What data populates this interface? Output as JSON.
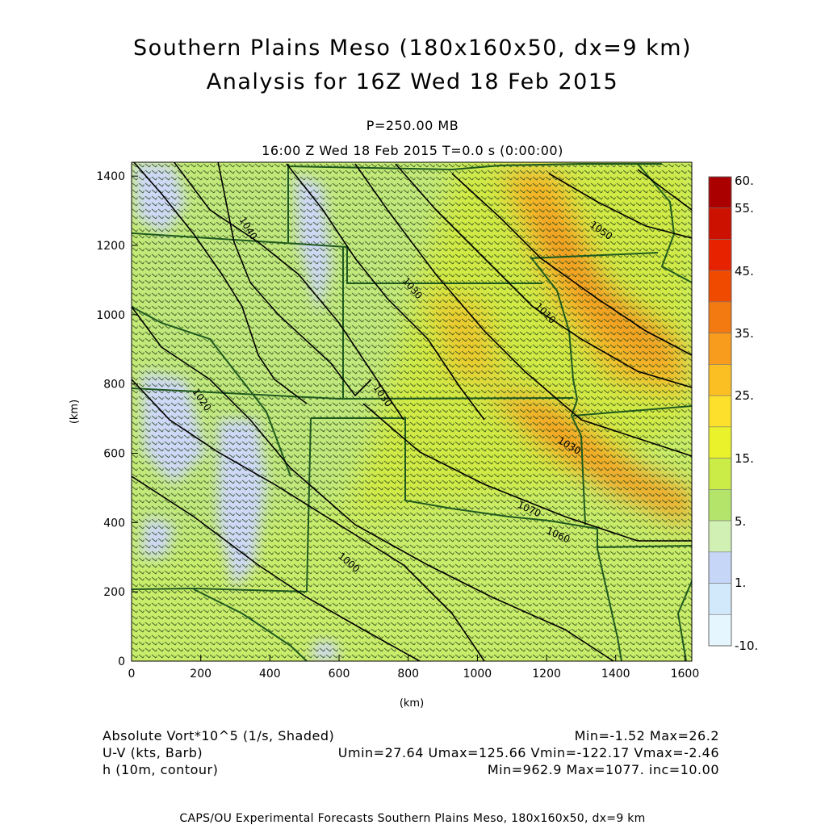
{
  "title": {
    "line1": "Southern Plains Meso (180x160x50, dx=9 km)",
    "line2": "Analysis for 16Z Wed 18 Feb 2015"
  },
  "subtitle": {
    "pressure": "P=250.00 MB",
    "time": "16:00 Z Wed 18 Feb 2015    T=0.0 s (0:00:00)"
  },
  "axes": {
    "x_label": "(km)",
    "y_label": "(km)",
    "x_ticks": [
      "0",
      "200",
      "400",
      "600",
      "800",
      "1000",
      "1200",
      "1400",
      "1600"
    ],
    "y_ticks": [
      "0",
      "200",
      "400",
      "600",
      "800",
      "1000",
      "1200",
      "1400"
    ],
    "x_range": [
      0,
      1620
    ],
    "y_range": [
      0,
      1440
    ]
  },
  "colorbar": {
    "labels": [
      "60.",
      "55.",
      "45.",
      "35.",
      "25.",
      "15.",
      "5.",
      "1.",
      "-10."
    ],
    "colors": [
      "#ab0000",
      "#cc1100",
      "#e62200",
      "#f04a00",
      "#f27a10",
      "#f79c1c",
      "#fbbf24",
      "#fde02b",
      "#e9f22a",
      "#cbec46",
      "#b5e46a",
      "#d1f1b4",
      "#c5d6f7",
      "#d2e8fb",
      "#e6f6ff"
    ]
  },
  "contours": {
    "labels": [
      "1040",
      "1030",
      "1030",
      "1020",
      "1000",
      "1010",
      "1030",
      "1050",
      "1060",
      "1070"
    ]
  },
  "legend": {
    "shaded": {
      "name": "Absolute Vort*10^5 (1/s, Shaded)",
      "stats": "Min=-1.52 Max=26.2"
    },
    "barb": {
      "name": "U-V (kts, Barb)",
      "stats": "Umin=27.64 Umax=125.66 Vmin=-122.17 Vmax=-2.46"
    },
    "contour": {
      "name": "h (10m, contour)",
      "stats": "Min=962.9 Max=1077. inc=10.00"
    }
  },
  "footer": "CAPS/OU Experimental Forecasts  Southern Plains Meso, 180x160x50, dx=9 km"
}
